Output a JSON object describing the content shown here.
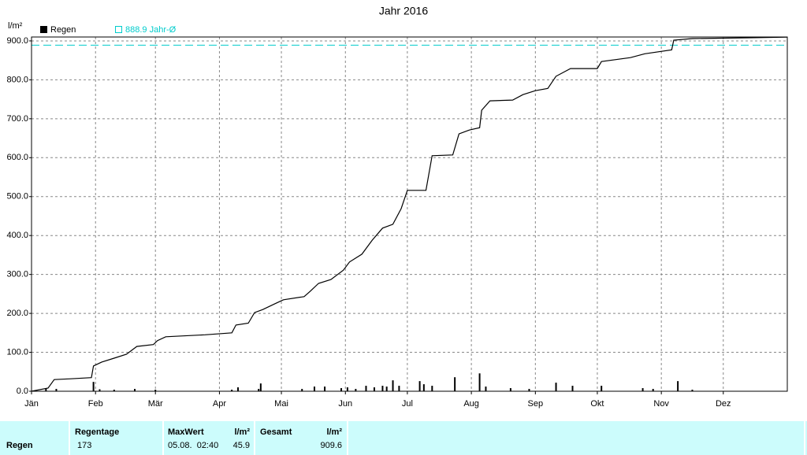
{
  "chart_data": {
    "type": "line",
    "title": "Jahr 2016",
    "y_label": "l/m²",
    "xlim": [
      0,
      366
    ],
    "ylim": [
      0,
      910
    ],
    "xticks": [
      {
        "value": 0,
        "label": "Jän"
      },
      {
        "value": 31,
        "label": "Feb"
      },
      {
        "value": 60,
        "label": "Mär"
      },
      {
        "value": 91,
        "label": "Apr"
      },
      {
        "value": 121,
        "label": "Mai"
      },
      {
        "value": 152,
        "label": "Jun"
      },
      {
        "value": 182,
        "label": "Jul"
      },
      {
        "value": 213,
        "label": "Aug"
      },
      {
        "value": 244,
        "label": "Sep"
      },
      {
        "value": 274,
        "label": "Okt"
      },
      {
        "value": 305,
        "label": "Nov"
      },
      {
        "value": 335,
        "label": "Dez"
      }
    ],
    "yticks": [
      {
        "value": 0,
        "label": "0.0"
      },
      {
        "value": 100,
        "label": "100.0"
      },
      {
        "value": 200,
        "label": "200.0"
      },
      {
        "value": 300,
        "label": "300.0"
      },
      {
        "value": 400,
        "label": "400.0"
      },
      {
        "value": 500,
        "label": "500.0"
      },
      {
        "value": 600,
        "label": "600.0"
      },
      {
        "value": 700,
        "label": "700.0"
      },
      {
        "value": 800,
        "label": "800.0"
      },
      {
        "value": 900,
        "label": "900.0"
      }
    ],
    "grid": true,
    "bars": {
      "name": "Regen",
      "color": "#000000",
      "x": [
        7,
        12,
        30,
        33,
        40,
        50,
        60,
        97,
        100,
        110,
        111,
        131,
        137,
        142,
        150,
        153,
        157,
        162,
        166,
        170,
        172,
        175,
        178,
        188,
        190,
        194,
        205,
        217,
        220,
        232,
        241,
        254,
        262,
        276,
        296,
        301,
        313,
        320
      ],
      "values": [
        8,
        6,
        24,
        5,
        4,
        6,
        4,
        4,
        10,
        6,
        20,
        6,
        12,
        12,
        8,
        10,
        6,
        14,
        10,
        14,
        12,
        28,
        14,
        26,
        18,
        14,
        36,
        45.9,
        12,
        8,
        6,
        22,
        14,
        14,
        8,
        6,
        26,
        4
      ]
    },
    "cumulative": {
      "color": "#000000",
      "x": [
        0,
        8,
        11,
        19,
        29,
        30,
        34,
        40,
        46,
        51,
        59,
        61,
        65,
        84,
        97,
        99,
        105,
        108,
        112,
        118,
        122,
        132,
        135,
        139,
        145,
        151,
        154,
        160,
        165,
        170,
        175,
        179,
        182,
        191,
        194,
        204,
        207,
        212,
        217,
        218,
        222,
        233,
        238,
        244,
        250,
        254,
        261,
        274,
        276,
        290,
        297,
        310,
        311,
        320,
        347,
        366
      ],
      "values": [
        0,
        8,
        30,
        32,
        35,
        65,
        75,
        85,
        95,
        115,
        120,
        130,
        140,
        145,
        150,
        170,
        175,
        202,
        210,
        225,
        235,
        243,
        257,
        277,
        287,
        311,
        332,
        352,
        388,
        419,
        429,
        469,
        516,
        516,
        605,
        607,
        661,
        671,
        677,
        722,
        746,
        748,
        762,
        772,
        778,
        809,
        829,
        829,
        847,
        857,
        867,
        877,
        902,
        906,
        908,
        909.6
      ]
    },
    "average": {
      "name": "888.9 Jahr-Ø",
      "color": "#00cccc",
      "value": 888.9
    }
  },
  "table": {
    "row_label": "Regen",
    "regentage": {
      "header": "Regentage",
      "value": 173
    },
    "maxwert": {
      "header": "MaxWert",
      "unit": "l/m²",
      "time": "05.08.  02:40",
      "value": 45.9
    },
    "gesamt": {
      "header": "Gesamt",
      "unit": "l/m²",
      "value": 909.6
    }
  }
}
